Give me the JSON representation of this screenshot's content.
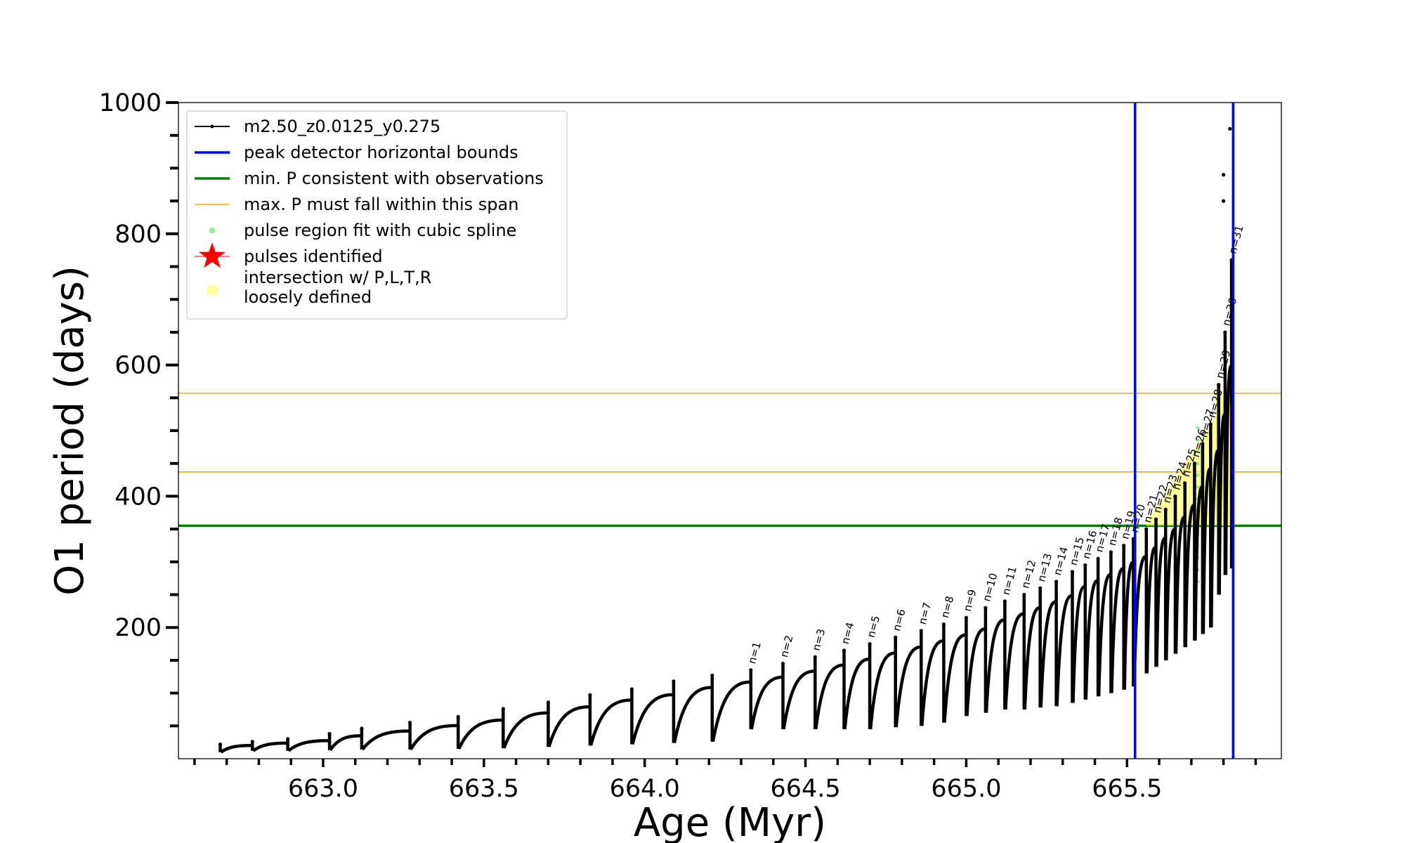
{
  "chart_data": {
    "type": "line",
    "title": "",
    "xlabel": "Age (Myr)",
    "ylabel": "O1 period (days)",
    "xlim": [
      662.55,
      665.98
    ],
    "ylim": [
      0,
      1000
    ],
    "x_ticks": [
      "663.0",
      "663.5",
      "664.0",
      "664.5",
      "665.0",
      "665.5"
    ],
    "x_tick_values": [
      663.0,
      663.5,
      664.0,
      664.5,
      665.0,
      665.5
    ],
    "y_ticks": [
      "200",
      "400",
      "600",
      "800",
      "1000"
    ],
    "y_tick_values": [
      200,
      400,
      600,
      800,
      1000
    ],
    "grid": false,
    "legend_position": "upper-left",
    "legend": [
      {
        "label": "m2.50_z0.0125_y0.275",
        "style": "line-dot",
        "color": "#000000"
      },
      {
        "label": "peak detector horizontal bounds",
        "style": "line",
        "color": "#0000ff"
      },
      {
        "label": "min. P consistent with observations",
        "style": "line",
        "color": "#008000"
      },
      {
        "label": "max. P must fall within this span",
        "style": "thin-line",
        "color": "#ffa500"
      },
      {
        "label": "pulse region fit with cubic spline",
        "style": "dot",
        "color": "#90ee90"
      },
      {
        "label": "pulses identified",
        "style": "star",
        "color": "#ff0000"
      },
      {
        "label": "intersection w/ P,L,T,R\nloosely defined",
        "style": "big-dot",
        "color": "#ffff99"
      }
    ],
    "vertical_lines": [
      {
        "name": "peak detector horizontal bounds",
        "x": 665.525,
        "color": "#0000ff"
      },
      {
        "name": "peak detector horizontal bounds",
        "x": 665.83,
        "color": "#0000ff"
      }
    ],
    "horizontal_lines": [
      {
        "name": "min. P consistent with observations",
        "y": 355,
        "color": "#008000"
      },
      {
        "name": "max. P must fall within this span",
        "y": 437,
        "color": "#ffa500"
      },
      {
        "name": "max. P must fall within this span",
        "y": 557,
        "color": "#ffa500"
      }
    ],
    "pre_pulses": [
      {
        "x": 662.68,
        "peak": 22,
        "min": 10
      },
      {
        "x": 662.78,
        "peak": 26,
        "min": 12
      },
      {
        "x": 662.89,
        "peak": 30,
        "min": 12
      },
      {
        "x": 663.02,
        "peak": 38,
        "min": 13
      },
      {
        "x": 663.12,
        "peak": 46,
        "min": 14
      },
      {
        "x": 663.27,
        "peak": 55,
        "min": 14
      },
      {
        "x": 663.42,
        "peak": 64,
        "min": 15
      },
      {
        "x": 663.56,
        "peak": 76,
        "min": 16
      },
      {
        "x": 663.7,
        "peak": 86,
        "min": 18
      },
      {
        "x": 663.83,
        "peak": 97,
        "min": 20
      },
      {
        "x": 663.96,
        "peak": 106,
        "min": 22
      },
      {
        "x": 664.09,
        "peak": 118,
        "min": 24
      },
      {
        "x": 664.21,
        "peak": 127,
        "min": 26
      }
    ],
    "pulses": [
      {
        "n": 1,
        "x": 664.33,
        "peak": 135,
        "min": 45
      },
      {
        "n": 2,
        "x": 664.43,
        "peak": 145,
        "min": 45
      },
      {
        "n": 3,
        "x": 664.53,
        "peak": 155,
        "min": 45
      },
      {
        "n": 4,
        "x": 664.62,
        "peak": 165,
        "min": 45
      },
      {
        "n": 5,
        "x": 664.7,
        "peak": 175,
        "min": 45
      },
      {
        "n": 6,
        "x": 664.78,
        "peak": 185,
        "min": 48
      },
      {
        "n": 7,
        "x": 664.86,
        "peak": 195,
        "min": 50
      },
      {
        "n": 8,
        "x": 664.93,
        "peak": 205,
        "min": 55
      },
      {
        "n": 9,
        "x": 665.0,
        "peak": 215,
        "min": 65
      },
      {
        "n": 10,
        "x": 665.06,
        "peak": 230,
        "min": 70
      },
      {
        "n": 11,
        "x": 665.12,
        "peak": 240,
        "min": 75
      },
      {
        "n": 12,
        "x": 665.18,
        "peak": 250,
        "min": 75
      },
      {
        "n": 13,
        "x": 665.23,
        "peak": 260,
        "min": 78
      },
      {
        "n": 14,
        "x": 665.28,
        "peak": 270,
        "min": 80
      },
      {
        "n": 15,
        "x": 665.33,
        "peak": 285,
        "min": 85
      },
      {
        "n": 16,
        "x": 665.37,
        "peak": 295,
        "min": 90
      },
      {
        "n": 17,
        "x": 665.41,
        "peak": 305,
        "min": 95
      },
      {
        "n": 18,
        "x": 665.45,
        "peak": 315,
        "min": 100
      },
      {
        "n": 19,
        "x": 665.49,
        "peak": 325,
        "min": 105
      },
      {
        "n": 20,
        "x": 665.52,
        "peak": 335,
        "min": 110
      },
      {
        "n": 21,
        "x": 665.56,
        "peak": 350,
        "min": 130
      },
      {
        "n": 22,
        "x": 665.59,
        "peak": 365,
        "min": 140
      },
      {
        "n": 23,
        "x": 665.62,
        "peak": 380,
        "min": 150
      },
      {
        "n": 24,
        "x": 665.65,
        "peak": 400,
        "min": 160
      },
      {
        "n": 25,
        "x": 665.68,
        "peak": 420,
        "min": 170
      },
      {
        "n": 26,
        "x": 665.71,
        "peak": 450,
        "min": 180
      },
      {
        "n": 27,
        "x": 665.735,
        "peak": 480,
        "min": 190
      },
      {
        "n": 28,
        "x": 665.76,
        "peak": 510,
        "min": 200
      },
      {
        "n": 29,
        "x": 665.785,
        "peak": 570,
        "min": 250
      },
      {
        "n": 30,
        "x": 665.805,
        "peak": 650,
        "min": 280
      },
      {
        "n": 31,
        "x": 665.825,
        "peak": 760,
        "min": 290
      }
    ],
    "spike_points": [
      {
        "x": 665.8,
        "y": 890
      },
      {
        "x": 665.8,
        "y": 850
      },
      {
        "x": 665.82,
        "y": 960
      }
    ]
  }
}
